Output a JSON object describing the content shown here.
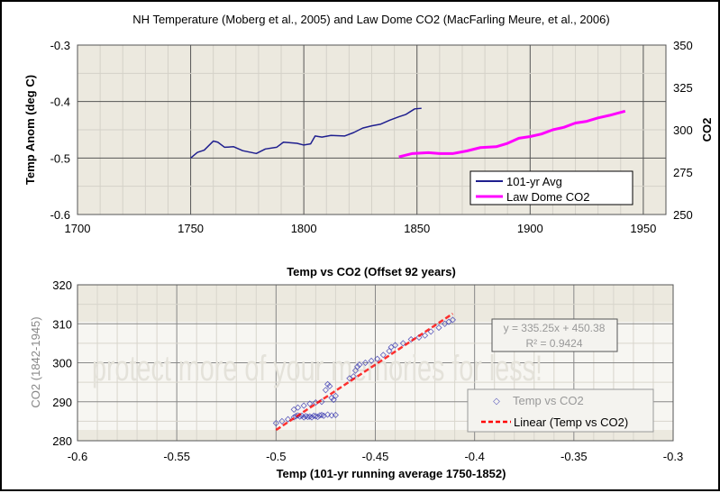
{
  "watermark": "protect more of your memories for less!",
  "chart_data": [
    {
      "type": "line",
      "title": "NH Temperature (Moberg et al., 2005) and Law Dome CO2 (MacFarling Meure, et al., 2006)",
      "xlabel": "",
      "ylabel": "Temp Anom (deg C)",
      "ylabel_right": "CO2",
      "xlim": [
        1700,
        1960
      ],
      "ylim": [
        -0.6,
        -0.3
      ],
      "ylim_right": [
        250,
        350
      ],
      "x_ticks": [
        "1700",
        "1750",
        "1800",
        "1850",
        "1900",
        "1950"
      ],
      "y_ticks": [
        "-0.3",
        "-0.4",
        "-0.5",
        "-0.6"
      ],
      "y_ticks_right": [
        "350",
        "325",
        "300",
        "275",
        "250"
      ],
      "legend_position": "bottom-right",
      "series": [
        {
          "name": "101-yr Avg",
          "color": "#1f1f8f",
          "axis": "left",
          "x": [
            1750,
            1753,
            1756,
            1758,
            1760,
            1762,
            1765,
            1769,
            1773,
            1779,
            1783,
            1788,
            1791,
            1797,
            1800,
            1803,
            1805,
            1808,
            1812,
            1818,
            1822,
            1826,
            1830,
            1834,
            1838,
            1842,
            1845,
            1847,
            1849,
            1852
          ],
          "y": [
            -0.5,
            -0.49,
            -0.486,
            -0.478,
            -0.47,
            -0.472,
            -0.481,
            -0.48,
            -0.487,
            -0.492,
            -0.484,
            -0.481,
            -0.472,
            -0.474,
            -0.477,
            -0.475,
            -0.461,
            -0.463,
            -0.46,
            -0.461,
            -0.455,
            -0.447,
            -0.443,
            -0.44,
            -0.433,
            -0.427,
            -0.423,
            -0.418,
            -0.413,
            -0.412
          ]
        },
        {
          "name": "Law Dome CO2",
          "color": "#ff00ff",
          "axis": "right",
          "x": [
            1842,
            1848,
            1855,
            1860,
            1866,
            1872,
            1878,
            1885,
            1890,
            1895,
            1900,
            1905,
            1910,
            1915,
            1920,
            1925,
            1930,
            1935,
            1942
          ],
          "y": [
            284,
            286,
            286.5,
            286,
            286,
            287.5,
            289.5,
            290,
            292,
            295,
            296,
            297.5,
            300,
            301.5,
            304,
            305,
            307,
            308.5,
            311
          ]
        }
      ]
    },
    {
      "type": "scatter",
      "title": "Temp vs CO2 (Offset 92 years)",
      "xlabel": "Temp (101-yr running average 1750-1852)",
      "ylabel": "CO2 (1842-1945)",
      "xlim": [
        -0.6,
        -0.3
      ],
      "ylim": [
        280,
        320
      ],
      "x_ticks": [
        "-0.6",
        "-0.55",
        "-0.5",
        "-0.45",
        "-0.4",
        "-0.35",
        "-0.3"
      ],
      "y_ticks": [
        "320",
        "310",
        "300",
        "290",
        "280"
      ],
      "legend_position": "bottom-right",
      "series": [
        {
          "name": "Temp vs CO2",
          "color": "#3a3ab0",
          "x": [
            -0.5,
            -0.497,
            -0.494,
            -0.491,
            -0.49,
            -0.489,
            -0.488,
            -0.487,
            -0.486,
            -0.485,
            -0.484,
            -0.483,
            -0.482,
            -0.481,
            -0.48,
            -0.479,
            -0.478,
            -0.477,
            -0.476,
            -0.474,
            -0.472,
            -0.47,
            -0.491,
            -0.489,
            -0.486,
            -0.483,
            -0.48,
            -0.477,
            -0.475,
            -0.474,
            -0.473,
            -0.472,
            -0.471,
            -0.47,
            -0.463,
            -0.461,
            -0.46,
            -0.459,
            -0.458,
            -0.455,
            -0.452,
            -0.449,
            -0.446,
            -0.443,
            -0.442,
            -0.44,
            -0.436,
            -0.432,
            -0.428,
            -0.425,
            -0.422,
            -0.418,
            -0.415,
            -0.413,
            -0.411
          ],
          "y": [
            284.5,
            285,
            285.5,
            286,
            286.3,
            286.5,
            286.2,
            286.4,
            286,
            286.3,
            286.1,
            286.2,
            286,
            286.4,
            286.3,
            286.1,
            286.5,
            286.6,
            286.4,
            286.7,
            286.5,
            286.6,
            288,
            288.5,
            289,
            289.5,
            289.8,
            290,
            293,
            294.5,
            294,
            291,
            290.5,
            291.5,
            296,
            296.5,
            298,
            299,
            299.5,
            300,
            300.5,
            301,
            302,
            303,
            304,
            304.5,
            305,
            306,
            306.5,
            307,
            308,
            309,
            310,
            310.5,
            311
          ]
        },
        {
          "name": "Linear (Temp vs CO2)",
          "color": "#ff0000",
          "slope": 335.25,
          "intercept": 450.38,
          "x_range": [
            -0.5,
            -0.411
          ]
        }
      ],
      "annotation": {
        "equation": "y = 335.25x + 450.38",
        "r2": "R² = 0.9424"
      }
    }
  ]
}
